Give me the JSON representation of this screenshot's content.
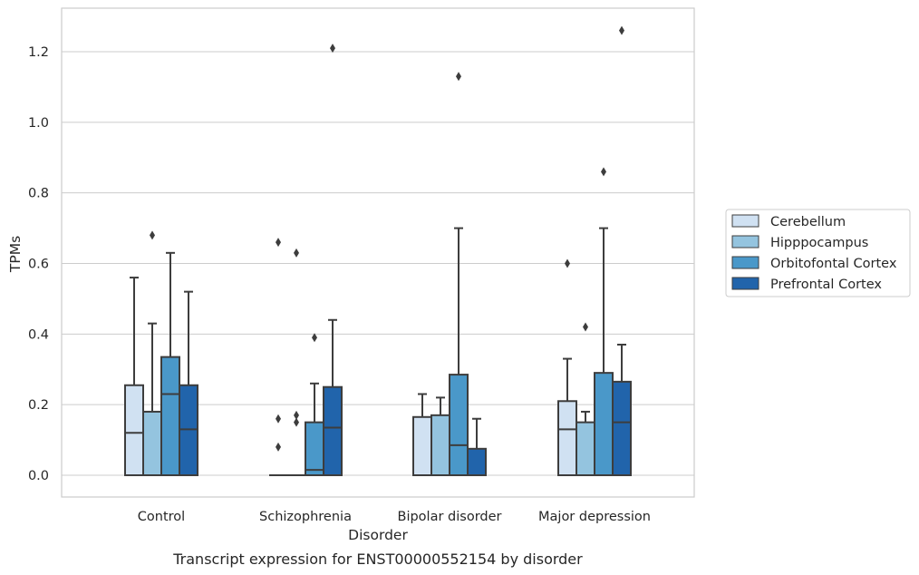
{
  "chart_data": {
    "type": "box",
    "caption": "Transcript expression for ENST00000552154 by disorder",
    "xlabel": "Disorder",
    "ylabel": "TPMs",
    "ylim": [
      -0.06,
      1.33
    ],
    "yticks": [
      "0.0",
      "0.2",
      "0.4",
      "0.6",
      "0.8",
      "1.0",
      "1.2"
    ],
    "grid": "horizontal",
    "legend_position": "right",
    "categories": [
      "Control",
      "Schizophrenia",
      "Bipolar disorder",
      "Major depression"
    ],
    "series": [
      {
        "name": "Cerebellum",
        "color": "#d0e1f2",
        "boxes": [
          {
            "min": 0.0,
            "q1": 0.0,
            "median": 0.12,
            "q3": 0.255,
            "max": 0.56,
            "outliers": []
          },
          {
            "min": 0.0,
            "q1": 0.0,
            "median": 0.0,
            "q3": 0.0,
            "max": 0.0,
            "outliers": [
              0.66,
              0.16,
              0.08
            ]
          },
          {
            "min": 0.0,
            "q1": 0.0,
            "median": 0.0,
            "q3": 0.165,
            "max": 0.23,
            "outliers": []
          },
          {
            "min": 0.0,
            "q1": 0.0,
            "median": 0.13,
            "q3": 0.21,
            "max": 0.33,
            "outliers": [
              0.6
            ]
          }
        ]
      },
      {
        "name": "Hipppocampus",
        "color": "#94c4df",
        "boxes": [
          {
            "min": 0.0,
            "q1": 0.0,
            "median": 0.0,
            "q3": 0.18,
            "max": 0.43,
            "outliers": [
              0.68
            ]
          },
          {
            "min": 0.0,
            "q1": 0.0,
            "median": 0.0,
            "q3": 0.0,
            "max": 0.0,
            "outliers": [
              0.63,
              0.17,
              0.15
            ]
          },
          {
            "min": 0.0,
            "q1": 0.0,
            "median": 0.0,
            "q3": 0.17,
            "max": 0.22,
            "outliers": []
          },
          {
            "min": 0.0,
            "q1": 0.0,
            "median": 0.0,
            "q3": 0.15,
            "max": 0.18,
            "outliers": [
              0.42
            ]
          }
        ]
      },
      {
        "name": "Orbitofontal Cortex",
        "color": "#4a98c9",
        "boxes": [
          {
            "min": 0.0,
            "q1": 0.0,
            "median": 0.23,
            "q3": 0.335,
            "max": 0.63,
            "outliers": []
          },
          {
            "min": 0.0,
            "q1": 0.0,
            "median": 0.015,
            "q3": 0.15,
            "max": 0.26,
            "outliers": [
              0.39
            ]
          },
          {
            "min": 0.0,
            "q1": 0.0,
            "median": 0.085,
            "q3": 0.285,
            "max": 0.7,
            "outliers": [
              1.13
            ]
          },
          {
            "min": 0.0,
            "q1": 0.0,
            "median": 0.0,
            "q3": 0.29,
            "max": 0.7,
            "outliers": [
              0.86
            ]
          }
        ]
      },
      {
        "name": "Prefrontal Cortex",
        "color": "#2164ab",
        "boxes": [
          {
            "min": 0.0,
            "q1": 0.0,
            "median": 0.13,
            "q3": 0.255,
            "max": 0.52,
            "outliers": []
          },
          {
            "min": 0.0,
            "q1": 0.0,
            "median": 0.135,
            "q3": 0.25,
            "max": 0.44,
            "outliers": [
              1.21
            ]
          },
          {
            "min": 0.0,
            "q1": 0.0,
            "median": 0.0,
            "q3": 0.075,
            "max": 0.16,
            "outliers": []
          },
          {
            "min": 0.0,
            "q1": 0.0,
            "median": 0.15,
            "q3": 0.265,
            "max": 0.37,
            "outliers": [
              1.26
            ]
          }
        ]
      }
    ]
  }
}
